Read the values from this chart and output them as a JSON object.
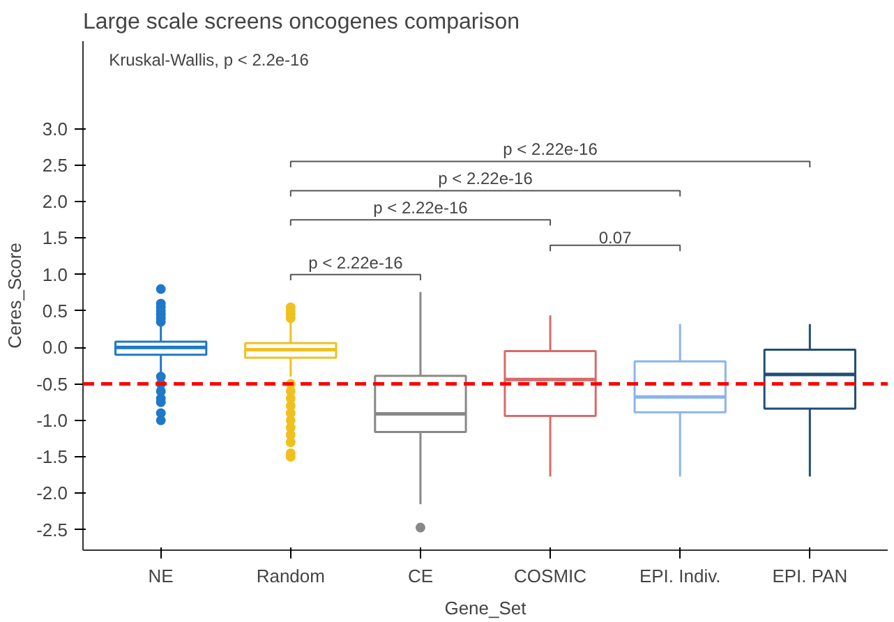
{
  "chart_data": {
    "type": "box",
    "title": "Large scale screens oncogenes comparison",
    "xlabel": "Gene_Set",
    "ylabel": "Ceres_Score",
    "categories": [
      "NE",
      "Random",
      "CE",
      "COSMIC",
      "EPI. Indiv.",
      "EPI. PAN"
    ],
    "colors": [
      "#1f78c8",
      "#f0c020",
      "#888888",
      "#d86a6a",
      "#8ab4f0",
      "#1f4e79"
    ],
    "boxes": [
      {
        "low": -0.35,
        "q1": -0.1,
        "median": 0.0,
        "q3": 0.08,
        "high": 0.33,
        "outliers": [
          0.8,
          0.6,
          0.55,
          0.5,
          0.45,
          0.4,
          0.35,
          -0.4,
          -0.5,
          -0.6,
          -0.7,
          -0.75,
          -0.9,
          -1.0
        ]
      },
      {
        "low": -0.4,
        "q1": -0.14,
        "median": -0.03,
        "q3": 0.06,
        "high": 0.35,
        "outliers": [
          0.55,
          0.5,
          0.45,
          0.4,
          -0.5,
          -0.6,
          -0.7,
          -0.8,
          -0.9,
          -1.0,
          -1.1,
          -1.2,
          -1.3,
          -1.45,
          -1.5
        ]
      },
      {
        "low": -2.15,
        "q1": -1.16,
        "median": -0.91,
        "q3": -0.39,
        "high": 0.76,
        "outliers": [
          -2.47
        ]
      },
      {
        "low": -1.77,
        "q1": -0.94,
        "median": -0.44,
        "q3": -0.05,
        "high": 0.44
      },
      {
        "low": -1.77,
        "q1": -0.89,
        "median": -0.68,
        "q3": -0.19,
        "high": 0.32
      },
      {
        "low": -1.77,
        "q1": -0.84,
        "median": -0.37,
        "q3": -0.03,
        "high": 0.32
      }
    ],
    "ylim": [
      -2.78,
      4.2
    ],
    "yticks": [
      {
        "value": -2.5,
        "label": "-2.5"
      },
      {
        "value": -2,
        "label": "-2.0"
      },
      {
        "value": -1.5,
        "label": "-1.5"
      },
      {
        "value": -1,
        "label": "-1.0"
      },
      {
        "value": -0.5,
        "label": "-0.5"
      },
      {
        "value": 0,
        "label": "0.0"
      },
      {
        "value": 0.5,
        "label": "0.5"
      },
      {
        "value": 1,
        "label": "1.0"
      },
      {
        "value": 1.5,
        "label": "1.5"
      },
      {
        "value": 2,
        "label": "2.0"
      },
      {
        "value": 2.5,
        "label": "2.5"
      },
      {
        "value": 3,
        "label": "3.0"
      }
    ],
    "ref_lines": [
      {
        "axis": "y",
        "value": -0.5,
        "color": "#ff0000",
        "line_style": "dashed"
      }
    ],
    "annotations": [
      "Kruskal-Wallis, p < 2.2e-16",
      "p < 2.22e-16",
      "p < 2.22e-16",
      "p < 2.22e-16",
      "p < 2.22e-16",
      "0.07"
    ],
    "grid": false
  }
}
